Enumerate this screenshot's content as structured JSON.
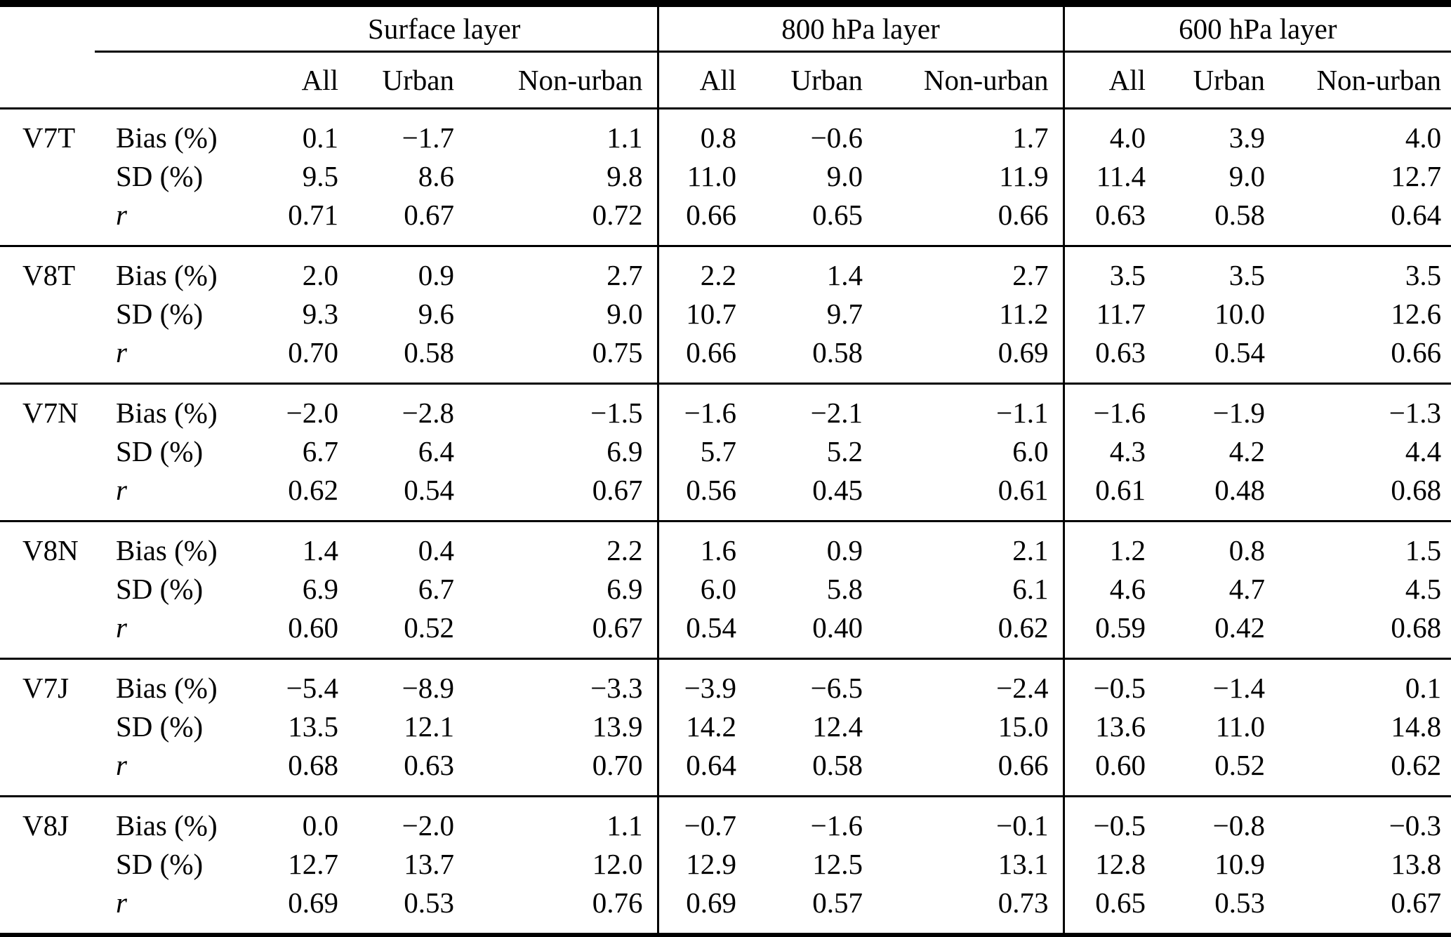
{
  "page": {
    "background_color": "#ffffff",
    "text_color": "#000000"
  },
  "table": {
    "column_groups": [
      {
        "label": "Surface layer",
        "subcolumns": [
          "All",
          "Urban",
          "Non-urban"
        ]
      },
      {
        "label": "800 hPa layer",
        "subcolumns": [
          "All",
          "Urban",
          "Non-urban"
        ]
      },
      {
        "label": "600 hPa layer",
        "subcolumns": [
          "All",
          "Urban",
          "Non-urban"
        ]
      }
    ],
    "metric_labels": {
      "bias": "Bias (%)",
      "sd": "SD (%)",
      "r": "r"
    },
    "blocks": [
      {
        "version": "V7T",
        "bias": [
          "0.1",
          "−1.7",
          "1.1",
          "0.8",
          "−0.6",
          "1.7",
          "4.0",
          "3.9",
          "4.0"
        ],
        "sd": [
          "9.5",
          "8.6",
          "9.8",
          "11.0",
          "9.0",
          "11.9",
          "11.4",
          "9.0",
          "12.7"
        ],
        "r": [
          "0.71",
          "0.67",
          "0.72",
          "0.66",
          "0.65",
          "0.66",
          "0.63",
          "0.58",
          "0.64"
        ]
      },
      {
        "version": "V8T",
        "bias": [
          "2.0",
          "0.9",
          "2.7",
          "2.2",
          "1.4",
          "2.7",
          "3.5",
          "3.5",
          "3.5"
        ],
        "sd": [
          "9.3",
          "9.6",
          "9.0",
          "10.7",
          "9.7",
          "11.2",
          "11.7",
          "10.0",
          "12.6"
        ],
        "r": [
          "0.70",
          "0.58",
          "0.75",
          "0.66",
          "0.58",
          "0.69",
          "0.63",
          "0.54",
          "0.66"
        ]
      },
      {
        "version": "V7N",
        "bias": [
          "−2.0",
          "−2.8",
          "−1.5",
          "−1.6",
          "−2.1",
          "−1.1",
          "−1.6",
          "−1.9",
          "−1.3"
        ],
        "sd": [
          "6.7",
          "6.4",
          "6.9",
          "5.7",
          "5.2",
          "6.0",
          "4.3",
          "4.2",
          "4.4"
        ],
        "r": [
          "0.62",
          "0.54",
          "0.67",
          "0.56",
          "0.45",
          "0.61",
          "0.61",
          "0.48",
          "0.68"
        ]
      },
      {
        "version": "V8N",
        "bias": [
          "1.4",
          "0.4",
          "2.2",
          "1.6",
          "0.9",
          "2.1",
          "1.2",
          "0.8",
          "1.5"
        ],
        "sd": [
          "6.9",
          "6.7",
          "6.9",
          "6.0",
          "5.8",
          "6.1",
          "4.6",
          "4.7",
          "4.5"
        ],
        "r": [
          "0.60",
          "0.52",
          "0.67",
          "0.54",
          "0.40",
          "0.62",
          "0.59",
          "0.42",
          "0.68"
        ]
      },
      {
        "version": "V7J",
        "bias": [
          "−5.4",
          "−8.9",
          "−3.3",
          "−3.9",
          "−6.5",
          "−2.4",
          "−0.5",
          "−1.4",
          "0.1"
        ],
        "sd": [
          "13.5",
          "12.1",
          "13.9",
          "14.2",
          "12.4",
          "15.0",
          "13.6",
          "11.0",
          "14.8"
        ],
        "r": [
          "0.68",
          "0.63",
          "0.70",
          "0.64",
          "0.58",
          "0.66",
          "0.60",
          "0.52",
          "0.62"
        ]
      },
      {
        "version": "V8J",
        "bias": [
          "0.0",
          "−2.0",
          "1.1",
          "−0.7",
          "−1.6",
          "−0.1",
          "−0.5",
          "−0.8",
          "−0.3"
        ],
        "sd": [
          "12.7",
          "13.7",
          "12.0",
          "12.9",
          "12.5",
          "13.1",
          "12.8",
          "10.9",
          "13.8"
        ],
        "r": [
          "0.69",
          "0.53",
          "0.76",
          "0.69",
          "0.57",
          "0.73",
          "0.65",
          "0.53",
          "0.67"
        ]
      }
    ]
  }
}
